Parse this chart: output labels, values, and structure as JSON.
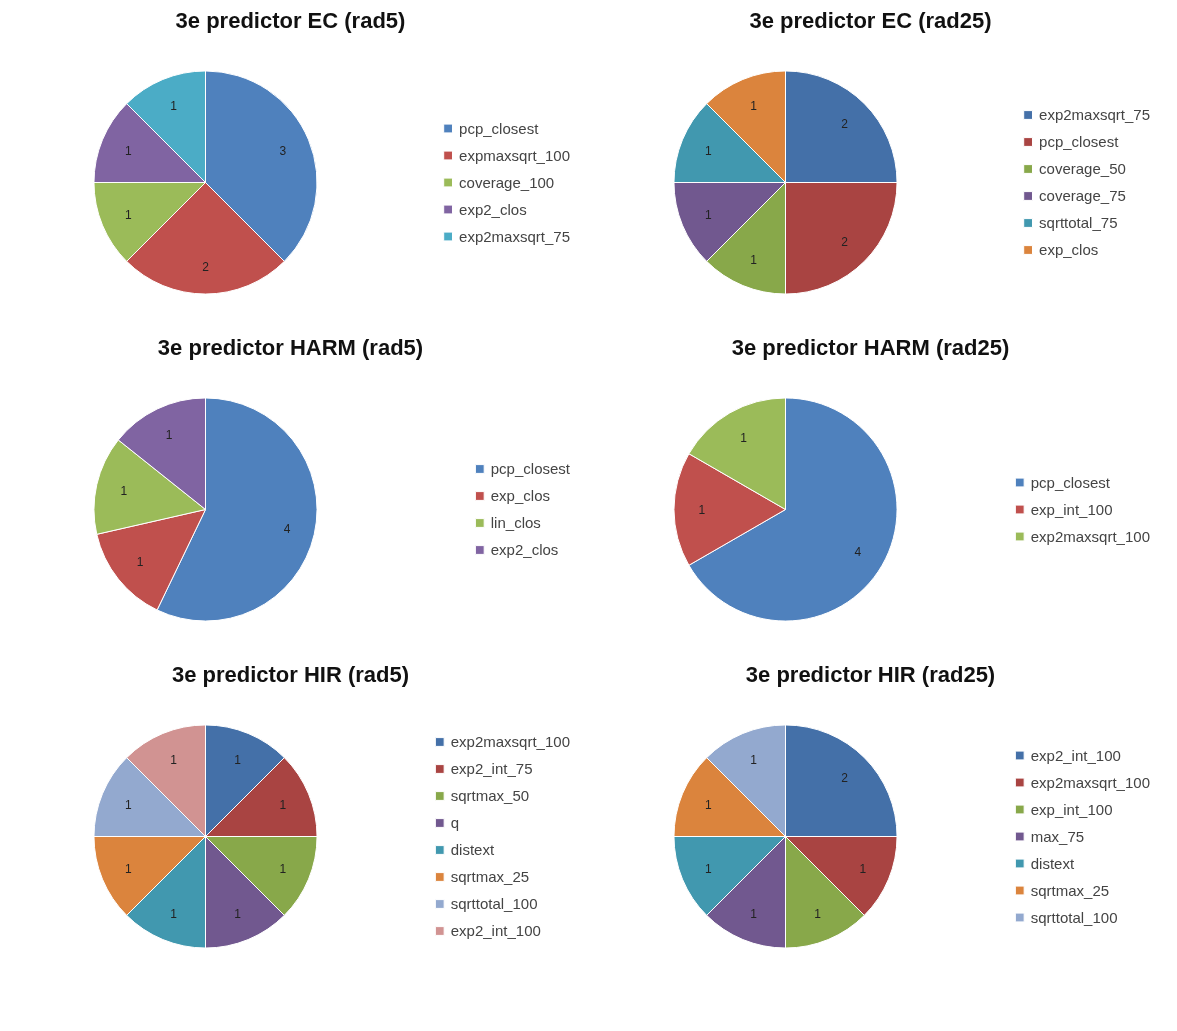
{
  "chart_data": [
    {
      "type": "pie",
      "title": "3e predictor EC (rad5)",
      "categories": [
        "pcp_closest",
        "expmaxsqrt_100",
        "coverage_100",
        "exp2_clos",
        "exp2maxsqrt_75"
      ],
      "values": [
        3,
        2,
        1,
        1,
        1
      ],
      "colors": [
        "#4f81bd",
        "#c0504d",
        "#9bbb59",
        "#8064a2",
        "#4bacc6"
      ],
      "data_labels": true,
      "legend": "right"
    },
    {
      "type": "pie",
      "title": "3e predictor EC (rad25)",
      "categories": [
        "exp2maxsqrt_75",
        "pcp_closest",
        "coverage_50",
        "coverage_75",
        "sqrttotal_75",
        "exp_clos"
      ],
      "values": [
        2,
        2,
        1,
        1,
        1,
        1
      ],
      "colors": [
        "#4470a8",
        "#a94442",
        "#88a84a",
        "#71588f",
        "#4198af",
        "#db843d"
      ],
      "data_labels": true,
      "legend": "right"
    },
    {
      "type": "pie",
      "title": "3e predictor HARM (rad5)",
      "categories": [
        "pcp_closest",
        "exp_clos",
        "lin_clos",
        "exp2_clos"
      ],
      "values": [
        4,
        1,
        1,
        1
      ],
      "colors": [
        "#4f81bd",
        "#c0504d",
        "#9bbb59",
        "#8064a2"
      ],
      "data_labels": true,
      "legend": "right"
    },
    {
      "type": "pie",
      "title": "3e predictor HARM (rad25)",
      "categories": [
        "pcp_closest",
        "exp_int_100",
        "exp2maxsqrt_100"
      ],
      "values": [
        4,
        1,
        1
      ],
      "colors": [
        "#4f81bd",
        "#c0504d",
        "#9bbb59"
      ],
      "data_labels": true,
      "legend": "right"
    },
    {
      "type": "pie",
      "title": "3e predictor HIR (rad5)",
      "categories": [
        "exp2maxsqrt_100",
        "exp2_int_75",
        "sqrtmax_50",
        "q",
        "distext",
        "sqrtmax_25",
        "sqrttotal_100",
        "exp2_int_100"
      ],
      "values": [
        1,
        1,
        1,
        1,
        1,
        1,
        1,
        1
      ],
      "colors": [
        "#4470a8",
        "#a94442",
        "#88a84a",
        "#71588f",
        "#4198af",
        "#db843d",
        "#93a9cf",
        "#d19392"
      ],
      "data_labels": true,
      "legend": "right"
    },
    {
      "type": "pie",
      "title": "3e predictor HIR (rad25)",
      "categories": [
        "exp2_int_100",
        "exp2maxsqrt_100",
        "exp_int_100",
        "max_75",
        "distext",
        "sqrtmax_25",
        "sqrttotal_100"
      ],
      "values": [
        2,
        1,
        1,
        1,
        1,
        1,
        1
      ],
      "colors": [
        "#4470a8",
        "#a94442",
        "#88a84a",
        "#71588f",
        "#4198af",
        "#db843d",
        "#93a9cf"
      ],
      "data_labels": true,
      "legend": "right"
    }
  ]
}
